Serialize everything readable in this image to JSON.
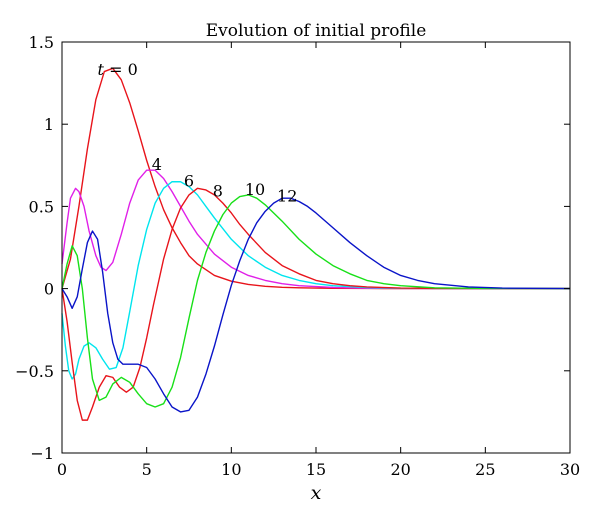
{
  "chart_data": {
    "type": "line",
    "title": "Evolution of initial profile",
    "xlabel": "x",
    "ylabel": "",
    "xlim": [
      0,
      30
    ],
    "ylim": [
      -1,
      1.5
    ],
    "xticks": [
      0,
      5,
      10,
      15,
      20,
      25,
      30
    ],
    "yticks": [
      -1,
      -0.5,
      0,
      0.5,
      1,
      1.5
    ],
    "xtick_labels": [
      "0",
      "5",
      "10",
      "15",
      "20",
      "25",
      "30"
    ],
    "ytick_labels": [
      "−1",
      "−0.5",
      "0",
      "0.5",
      "1",
      "1.5"
    ],
    "grid": false,
    "legend": "none",
    "series": [
      {
        "label": "t = 0",
        "color": "#e8141b",
        "label_pos": [
          2.1,
          1.3
        ],
        "x": [
          0,
          0.5,
          1,
          1.5,
          2,
          2.5,
          3,
          3.5,
          4,
          4.5,
          5,
          5.5,
          6,
          6.5,
          7,
          7.5,
          8,
          9,
          10,
          11,
          12,
          13,
          14,
          16,
          18,
          20,
          25,
          30
        ],
        "y": [
          0,
          0.18,
          0.5,
          0.85,
          1.15,
          1.32,
          1.34,
          1.27,
          1.13,
          0.96,
          0.78,
          0.62,
          0.48,
          0.37,
          0.28,
          0.2,
          0.15,
          0.08,
          0.045,
          0.025,
          0.014,
          0.008,
          0.005,
          0.002,
          0.001,
          0,
          0,
          0
        ]
      },
      {
        "label": "4",
        "color": "#e020e8",
        "label_pos": [
          5.3,
          0.72
        ],
        "x": [
          0,
          0.3,
          0.5,
          0.8,
          1,
          1.3,
          1.6,
          2,
          2.3,
          2.6,
          3,
          3.5,
          4,
          4.5,
          5,
          5.5,
          6,
          6.5,
          7,
          7.5,
          8,
          9,
          10,
          11,
          12,
          13,
          14,
          16,
          18,
          20,
          25,
          30
        ],
        "y": [
          0.15,
          0.4,
          0.55,
          0.61,
          0.59,
          0.5,
          0.35,
          0.2,
          0.13,
          0.11,
          0.16,
          0.33,
          0.52,
          0.66,
          0.72,
          0.72,
          0.67,
          0.59,
          0.5,
          0.41,
          0.33,
          0.21,
          0.13,
          0.08,
          0.05,
          0.03,
          0.018,
          0.007,
          0.002,
          0.001,
          0,
          0
        ]
      },
      {
        "label": "6",
        "color": "#00e5ee",
        "label_pos": [
          7.2,
          0.62
        ],
        "x": [
          0,
          0.2,
          0.4,
          0.6,
          0.8,
          1,
          1.3,
          1.6,
          2,
          2.4,
          2.8,
          3.2,
          3.6,
          4,
          4.5,
          5,
          5.5,
          6,
          6.5,
          7,
          7.5,
          8,
          8.5,
          9,
          10,
          11,
          12,
          13,
          14,
          15,
          16,
          18,
          20,
          25,
          30
        ],
        "y": [
          -0.15,
          -0.35,
          -0.5,
          -0.55,
          -0.52,
          -0.43,
          -0.35,
          -0.33,
          -0.36,
          -0.43,
          -0.49,
          -0.48,
          -0.36,
          -0.14,
          0.14,
          0.36,
          0.52,
          0.61,
          0.65,
          0.65,
          0.62,
          0.57,
          0.5,
          0.43,
          0.3,
          0.2,
          0.13,
          0.08,
          0.05,
          0.03,
          0.018,
          0.006,
          0.002,
          0,
          0
        ]
      },
      {
        "label": "8",
        "color": "#e8141b",
        "label_pos": [
          8.9,
          0.56
        ],
        "x": [
          0,
          0.3,
          0.6,
          0.9,
          1.2,
          1.5,
          1.8,
          2.2,
          2.6,
          3,
          3.4,
          3.8,
          4.2,
          4.6,
          5,
          5.4,
          6,
          6.5,
          7,
          7.5,
          8,
          8.5,
          9,
          9.5,
          10,
          10.5,
          11,
          12,
          13,
          14,
          15,
          16,
          17,
          18,
          20,
          22,
          25,
          30
        ],
        "y": [
          0,
          -0.2,
          -0.45,
          -0.68,
          -0.8,
          -0.8,
          -0.72,
          -0.6,
          -0.53,
          -0.54,
          -0.6,
          -0.63,
          -0.6,
          -0.48,
          -0.3,
          -0.1,
          0.18,
          0.36,
          0.49,
          0.57,
          0.61,
          0.6,
          0.57,
          0.52,
          0.46,
          0.39,
          0.33,
          0.22,
          0.14,
          0.09,
          0.05,
          0.03,
          0.018,
          0.01,
          0.003,
          0.001,
          0,
          0
        ]
      },
      {
        "label": "10",
        "color": "#18e018",
        "label_pos": [
          10.8,
          0.57
        ],
        "x": [
          0,
          0.3,
          0.6,
          0.9,
          1.2,
          1.5,
          1.8,
          2.2,
          2.6,
          3,
          3.5,
          4,
          4.5,
          5,
          5.5,
          6,
          6.5,
          7,
          7.5,
          8,
          8.5,
          9,
          9.5,
          10,
          10.5,
          11,
          11.5,
          12,
          12.5,
          13,
          14,
          15,
          16,
          17,
          18,
          19,
          20,
          22,
          25,
          30
        ],
        "y": [
          0,
          0.15,
          0.26,
          0.2,
          0.0,
          -0.3,
          -0.55,
          -0.68,
          -0.66,
          -0.58,
          -0.54,
          -0.57,
          -0.64,
          -0.7,
          -0.72,
          -0.7,
          -0.6,
          -0.42,
          -0.18,
          0.05,
          0.22,
          0.35,
          0.45,
          0.52,
          0.56,
          0.57,
          0.55,
          0.51,
          0.46,
          0.41,
          0.3,
          0.21,
          0.14,
          0.09,
          0.05,
          0.03,
          0.018,
          0.005,
          0.001,
          0
        ]
      },
      {
        "label": "12",
        "color": "#0a14c8",
        "label_pos": [
          12.7,
          0.53
        ],
        "x": [
          0,
          0.3,
          0.6,
          0.9,
          1.2,
          1.5,
          1.8,
          2.1,
          2.4,
          2.7,
          3,
          3.3,
          3.6,
          4,
          4.5,
          5,
          5.5,
          6,
          6.5,
          7,
          7.5,
          8,
          8.5,
          9,
          9.5,
          10,
          10.5,
          11,
          11.5,
          12,
          12.5,
          13,
          13.5,
          14,
          14.5,
          15,
          16,
          17,
          18,
          19,
          20,
          21,
          22,
          24,
          26,
          30
        ],
        "y": [
          0,
          -0.05,
          -0.12,
          -0.05,
          0.12,
          0.28,
          0.35,
          0.3,
          0.1,
          -0.15,
          -0.33,
          -0.43,
          -0.46,
          -0.46,
          -0.46,
          -0.48,
          -0.55,
          -0.64,
          -0.72,
          -0.75,
          -0.74,
          -0.66,
          -0.52,
          -0.35,
          -0.16,
          0.02,
          0.17,
          0.3,
          0.4,
          0.47,
          0.52,
          0.55,
          0.55,
          0.53,
          0.5,
          0.46,
          0.37,
          0.28,
          0.2,
          0.13,
          0.08,
          0.05,
          0.03,
          0.01,
          0.003,
          0
        ]
      }
    ]
  }
}
